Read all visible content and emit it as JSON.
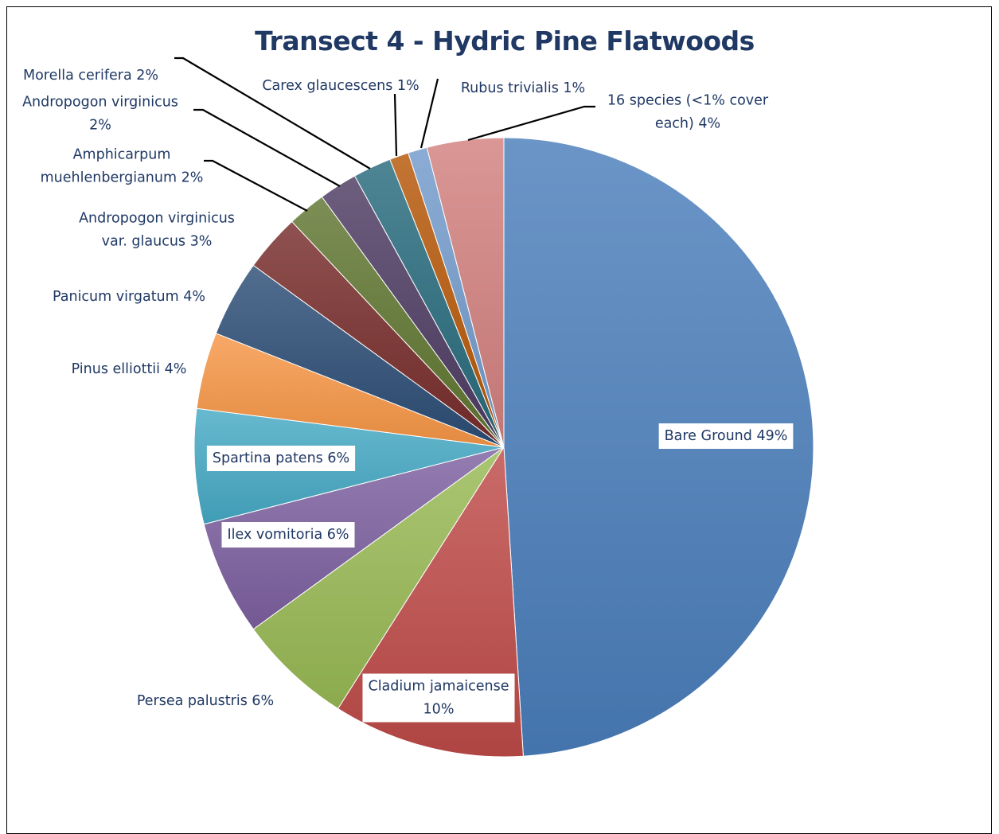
{
  "chart_data": {
    "type": "pie",
    "title": "Transect 4 - Hydric Pine Flatwoods",
    "slices": [
      {
        "name": "Bare Ground",
        "value": 49,
        "label": [
          "Bare Ground 49%"
        ],
        "color": "#4a7ebb"
      },
      {
        "name": "Cladium jamaicense",
        "value": 10,
        "label": [
          "Cladium jamaicense",
          "10%"
        ],
        "color": "#be4b48"
      },
      {
        "name": "Persea palustris",
        "value": 6,
        "label": [
          "Persea palustris 6%"
        ],
        "color": "#98b954"
      },
      {
        "name": "Ilex vomitoria",
        "value": 6,
        "label": [
          "Ilex vomitoria 6%"
        ],
        "color": "#7d60a0"
      },
      {
        "name": "Spartina patens",
        "value": 6,
        "label": [
          "Spartina patens 6%"
        ],
        "color": "#46aac5"
      },
      {
        "name": "Pinus elliottii",
        "value": 4,
        "label": [
          "Pinus elliottii  4%"
        ],
        "color": "#f79646"
      },
      {
        "name": "Panicum virgatum",
        "value": 4,
        "label": [
          "Panicum virgatum 4%"
        ],
        "color": "#2c4d75"
      },
      {
        "name": "Andropogon virginicus var. glaucus",
        "value": 3,
        "label": [
          "Andropogon virginicus",
          "var. glaucus 3%"
        ],
        "color": "#772c2a"
      },
      {
        "name": "Amphicarpum muehlenbergianum",
        "value": 2,
        "label": [
          "Amphicarpum",
          "muehlenbergianum 2%"
        ],
        "color": "#5f7530"
      },
      {
        "name": "Andropogon virginicus",
        "value": 2,
        "label": [
          "Andropogon virginicus",
          "2%"
        ],
        "color": "#4d3b62"
      },
      {
        "name": "Morella cerifera",
        "value": 2,
        "label": [
          "Morella cerifera 2%"
        ],
        "color": "#276a7c"
      },
      {
        "name": "Carex glaucescens",
        "value": 1,
        "label": [
          "Carex glaucescens 1%"
        ],
        "color": "#b65708"
      },
      {
        "name": "Rubus trivialis",
        "value": 1,
        "label": [
          "Rubus trivialis 1%"
        ],
        "color": "#729aca"
      },
      {
        "name": "16 species (<1% cover each)",
        "value": 4,
        "label": [
          "16 species (<1% cover",
          "each) 4%"
        ],
        "color": "#d2807e"
      }
    ]
  }
}
